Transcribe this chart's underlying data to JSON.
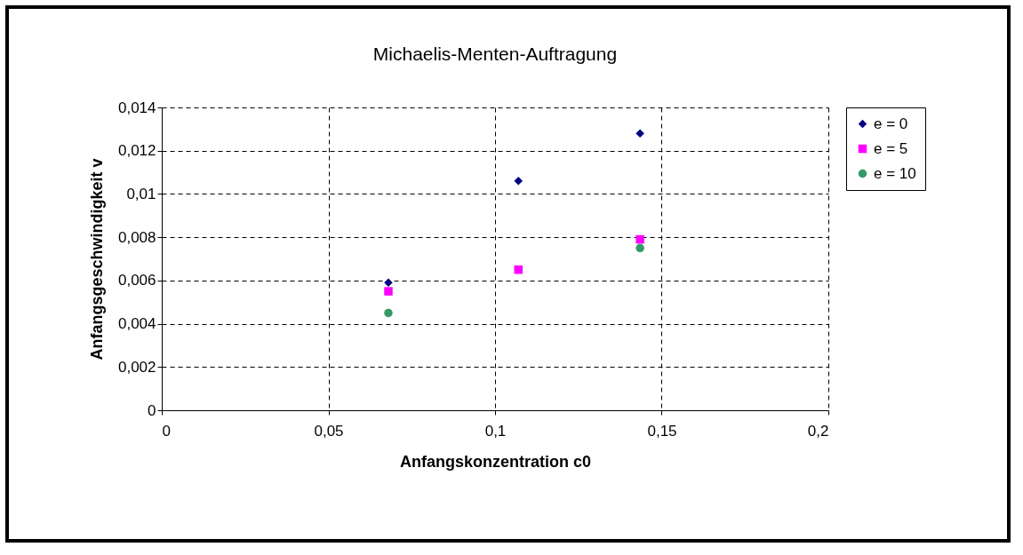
{
  "chart_data": {
    "type": "scatter",
    "title": "Michaelis-Menten-Auftragung",
    "xlabel": "Anfangskonzentration c0",
    "ylabel": "Anfangsgeschwindigkeit v",
    "xlim": [
      0,
      0.2
    ],
    "xticks": [
      0,
      {
        "value": 0.05,
        "label": "0,05"
      },
      {
        "value": 0.1,
        "label": "0,1"
      },
      {
        "value": 0.15,
        "label": "0,15"
      },
      {
        "value": 0.2,
        "label": "0,2"
      }
    ],
    "ylim": [
      0,
      0.014
    ],
    "yticks": [
      0,
      {
        "value": 0.002,
        "label": "0,002"
      },
      {
        "value": 0.004,
        "label": "0,004"
      },
      {
        "value": 0.006,
        "label": "0,006"
      },
      {
        "value": 0.008,
        "label": "0,008"
      },
      {
        "value": 0.01,
        "label": "0,01"
      },
      {
        "value": 0.012,
        "label": "0,012"
      },
      {
        "value": 0.014,
        "label": "0,014"
      }
    ],
    "grid": true,
    "legend": "right",
    "series": [
      {
        "name": "e = 0",
        "color": "#000080",
        "marker": "diamond",
        "x": [
          0.068,
          0.107,
          0.1435
        ],
        "values": [
          0.0059,
          0.0106,
          0.0128
        ]
      },
      {
        "name": "e = 5",
        "color": "#ff00ff",
        "marker": "square",
        "x": [
          0.068,
          0.107,
          0.1435
        ],
        "values": [
          0.0055,
          0.0065,
          0.0079
        ]
      },
      {
        "name": "e = 10",
        "color": "#339966",
        "marker": "circle",
        "x": [
          0.068,
          0.1435
        ],
        "values": [
          0.0045,
          0.0075
        ]
      }
    ]
  }
}
